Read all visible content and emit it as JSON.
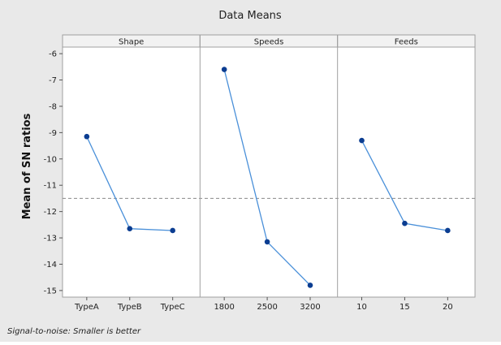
{
  "chart_data": {
    "type": "line",
    "title": "Data Means",
    "ylabel": "Mean of SN ratios",
    "footnote": "Signal-to-noise: Smaller is better",
    "ylim": [
      -15.25,
      -5.75
    ],
    "yticks": [
      -6,
      -7,
      -8,
      -9,
      -10,
      -11,
      -12,
      -13,
      -14,
      -15
    ],
    "reference_line": -11.5,
    "grid": false,
    "panels": [
      {
        "name": "Shape",
        "categories": [
          "TypeA",
          "TypeB",
          "TypeC"
        ],
        "values": [
          -9.15,
          -12.65,
          -12.72
        ]
      },
      {
        "name": "Speeds",
        "categories": [
          "1800",
          "2500",
          "3200"
        ],
        "values": [
          -6.6,
          -13.15,
          -14.8
        ]
      },
      {
        "name": "Feeds",
        "categories": [
          "10",
          "15",
          "20"
        ],
        "values": [
          -9.3,
          -12.45,
          -12.72
        ]
      }
    ],
    "colors": {
      "background": "#e9e9e9",
      "plot_background": "#ffffff",
      "line": "#4a90d9",
      "marker": "#0b3d91",
      "reference": "#8a8a8a",
      "strip": "#f2f2f2"
    }
  }
}
